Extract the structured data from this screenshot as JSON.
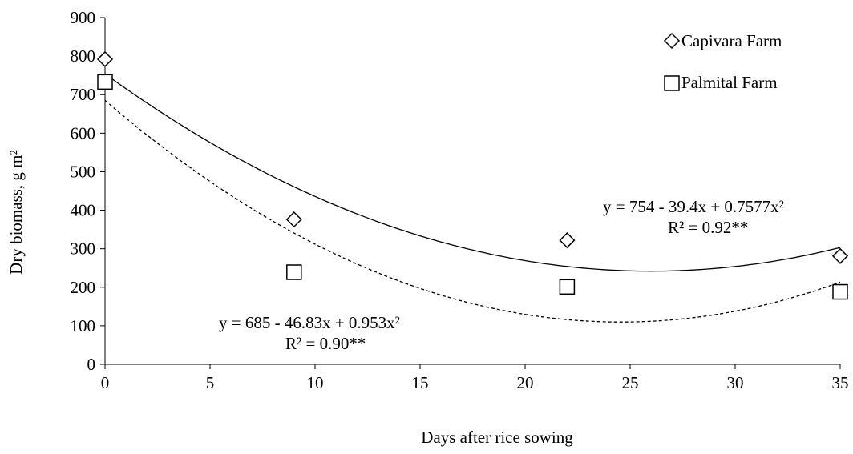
{
  "chart_data": {
    "type": "scatter",
    "xlabel": "Days after rice sowing",
    "ylabel": "Dry biomass, g m²",
    "xlim": [
      0,
      35
    ],
    "ylim": [
      0,
      900
    ],
    "x_ticks": [
      "0",
      "5",
      "10",
      "15",
      "20",
      "25",
      "30",
      "35"
    ],
    "y_ticks": [
      "0",
      "100",
      "200",
      "300",
      "400",
      "500",
      "600",
      "700",
      "800",
      "900"
    ],
    "grid": false,
    "legend_position": "top-right",
    "series": [
      {
        "name": "Capivara Farm",
        "marker": "diamond",
        "x": [
          0,
          9,
          22,
          35
        ],
        "y": [
          792,
          376,
          322,
          281
        ],
        "trend": {
          "a": 754,
          "b": -39.4,
          "c": 0.7577,
          "style": "solid"
        },
        "equation": "y = 754 - 39.4x + 0.7577x²",
        "r2": "R² = 0.92**"
      },
      {
        "name": "Palmital Farm",
        "marker": "square",
        "x": [
          0,
          9,
          22,
          35
        ],
        "y": [
          733,
          239,
          201,
          188
        ],
        "trend": {
          "a": 685,
          "b": -46.83,
          "c": 0.953,
          "style": "dashed"
        },
        "equation": "y = 685 - 46.83x + 0.953x²",
        "r2": "R² = 0.90**"
      }
    ]
  }
}
